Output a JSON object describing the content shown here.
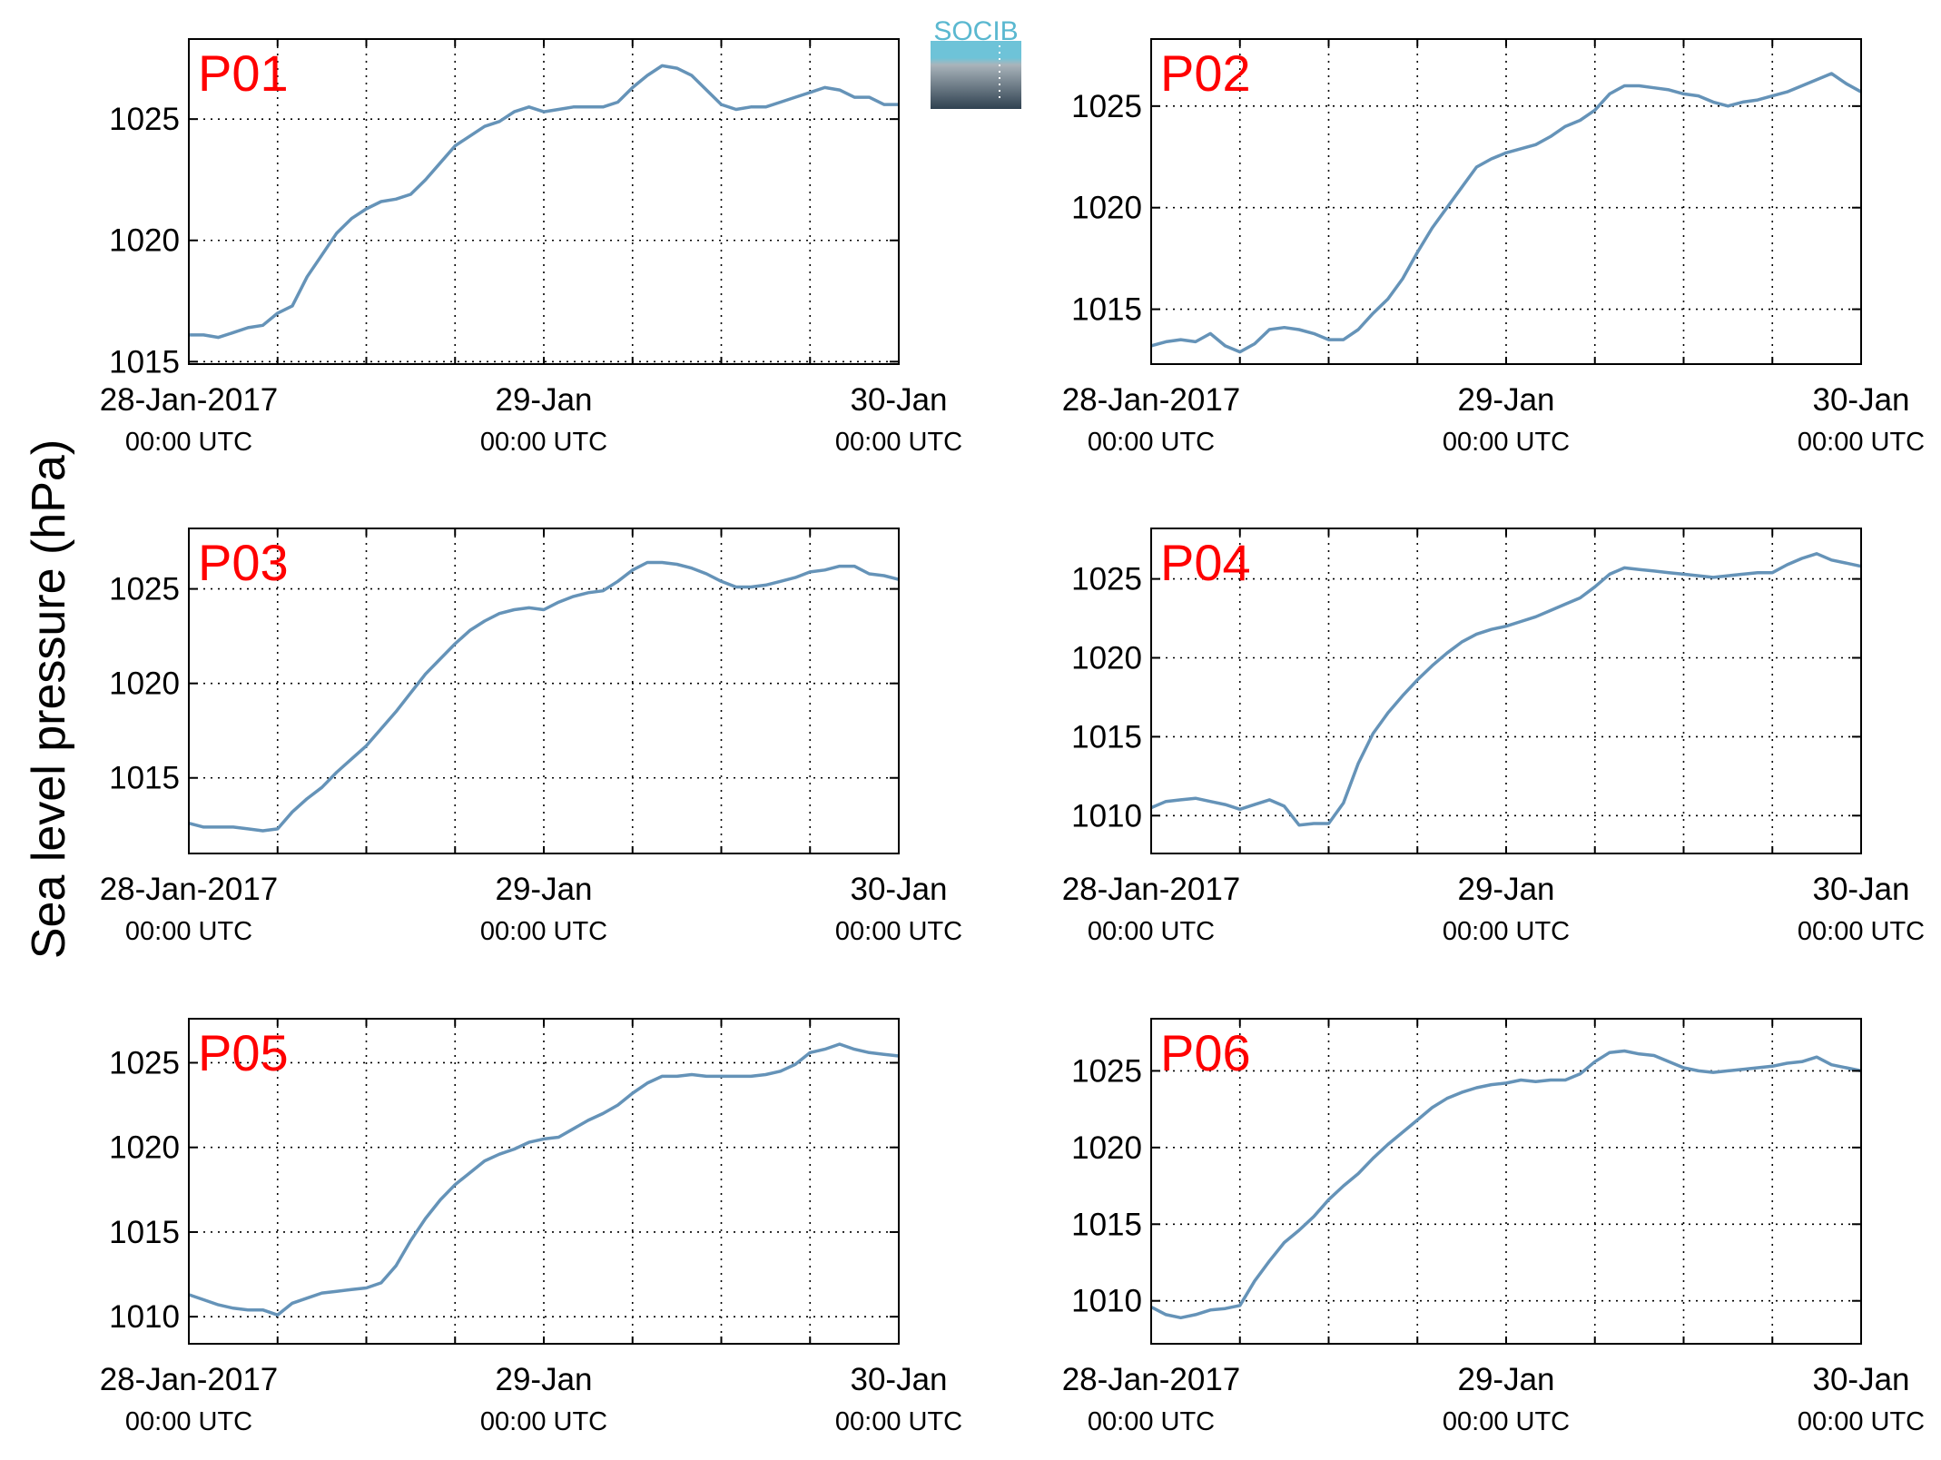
{
  "figure": {
    "ylabel": "Sea level pressure (hPa)",
    "logo_text": "SOCIB",
    "line_color": "#6593b8",
    "label_color": "#ff0000"
  },
  "chart_data": [
    {
      "type": "line",
      "name": "P01",
      "ylim": [
        1014.9,
        1028.3
      ],
      "yticks": [
        1015,
        1020,
        1025
      ],
      "xlim": [
        0,
        48
      ],
      "xticks": [
        0,
        24,
        48
      ],
      "xticklabels": [
        [
          "28-Jan-2017",
          "00:00 UTC"
        ],
        [
          "29-Jan",
          "00:00 UTC"
        ],
        [
          "30-Jan",
          "00:00 UTC"
        ]
      ],
      "grid": true,
      "x": [
        0,
        1,
        2,
        3,
        4,
        5,
        6,
        7,
        8,
        9,
        10,
        11,
        12,
        13,
        14,
        15,
        16,
        17,
        18,
        19,
        20,
        21,
        22,
        23,
        24,
        25,
        26,
        27,
        28,
        29,
        30,
        31,
        32,
        33,
        34,
        35,
        36,
        37,
        38,
        39,
        40,
        41,
        42,
        43,
        44,
        45,
        46,
        47,
        48
      ],
      "y": [
        1016.1,
        1016.1,
        1016.0,
        1016.2,
        1016.4,
        1016.5,
        1017.0,
        1017.3,
        1018.5,
        1019.4,
        1020.3,
        1020.9,
        1021.3,
        1021.6,
        1021.7,
        1021.9,
        1022.5,
        1023.2,
        1023.9,
        1024.3,
        1024.7,
        1024.9,
        1025.3,
        1025.5,
        1025.3,
        1025.4,
        1025.5,
        1025.5,
        1025.5,
        1025.7,
        1026.3,
        1026.8,
        1027.2,
        1027.1,
        1026.8,
        1026.2,
        1025.6,
        1025.4,
        1025.5,
        1025.5,
        1025.7,
        1025.9,
        1026.1,
        1026.3,
        1026.2,
        1025.9,
        1025.9,
        1025.6,
        1025.6
      ]
    },
    {
      "type": "line",
      "name": "P02",
      "ylim": [
        1012.3,
        1028.3
      ],
      "yticks": [
        1015,
        1020,
        1025
      ],
      "xlim": [
        0,
        48
      ],
      "xticks": [
        0,
        24,
        48
      ],
      "xticklabels": [
        [
          "28-Jan-2017",
          "00:00 UTC"
        ],
        [
          "29-Jan",
          "00:00 UTC"
        ],
        [
          "30-Jan",
          "00:00 UTC"
        ]
      ],
      "grid": true,
      "x": [
        0,
        1,
        2,
        3,
        4,
        5,
        6,
        7,
        8,
        9,
        10,
        11,
        12,
        13,
        14,
        15,
        16,
        17,
        18,
        19,
        20,
        21,
        22,
        23,
        24,
        25,
        26,
        27,
        28,
        29,
        30,
        31,
        32,
        33,
        34,
        35,
        36,
        37,
        38,
        39,
        40,
        41,
        42,
        43,
        44,
        45,
        46,
        47,
        48
      ],
      "y": [
        1013.2,
        1013.4,
        1013.5,
        1013.4,
        1013.8,
        1013.2,
        1012.9,
        1013.3,
        1014.0,
        1014.1,
        1014.0,
        1013.8,
        1013.5,
        1013.5,
        1014.0,
        1014.8,
        1015.5,
        1016.5,
        1017.8,
        1019.0,
        1020.0,
        1021.0,
        1022.0,
        1022.4,
        1022.7,
        1022.9,
        1023.1,
        1023.5,
        1024.0,
        1024.3,
        1024.8,
        1025.6,
        1026.0,
        1026.0,
        1025.9,
        1025.8,
        1025.6,
        1025.5,
        1025.2,
        1025.0,
        1025.2,
        1025.3,
        1025.5,
        1025.7,
        1026.0,
        1026.3,
        1026.6,
        1026.1,
        1025.7
      ]
    },
    {
      "type": "line",
      "name": "P03",
      "ylim": [
        1011.0,
        1028.2
      ],
      "yticks": [
        1015,
        1020,
        1025
      ],
      "xlim": [
        0,
        48
      ],
      "xticks": [
        0,
        24,
        48
      ],
      "xticklabels": [
        [
          "28-Jan-2017",
          "00:00 UTC"
        ],
        [
          "29-Jan",
          "00:00 UTC"
        ],
        [
          "30-Jan",
          "00:00 UTC"
        ]
      ],
      "grid": true,
      "x": [
        0,
        1,
        2,
        3,
        4,
        5,
        6,
        7,
        8,
        9,
        10,
        11,
        12,
        13,
        14,
        15,
        16,
        17,
        18,
        19,
        20,
        21,
        22,
        23,
        24,
        25,
        26,
        27,
        28,
        29,
        30,
        31,
        32,
        33,
        34,
        35,
        36,
        37,
        38,
        39,
        40,
        41,
        42,
        43,
        44,
        45,
        46,
        47,
        48
      ],
      "y": [
        1012.6,
        1012.4,
        1012.4,
        1012.4,
        1012.3,
        1012.2,
        1012.3,
        1013.2,
        1013.9,
        1014.5,
        1015.3,
        1016.0,
        1016.7,
        1017.6,
        1018.5,
        1019.5,
        1020.5,
        1021.3,
        1022.1,
        1022.8,
        1023.3,
        1023.7,
        1023.9,
        1024.0,
        1023.9,
        1024.3,
        1024.6,
        1024.8,
        1024.9,
        1025.4,
        1026.0,
        1026.4,
        1026.4,
        1026.3,
        1026.1,
        1025.8,
        1025.4,
        1025.1,
        1025.1,
        1025.2,
        1025.4,
        1025.6,
        1025.9,
        1026.0,
        1026.2,
        1026.2,
        1025.8,
        1025.7,
        1025.5
      ]
    },
    {
      "type": "line",
      "name": "P04",
      "ylim": [
        1007.6,
        1028.2
      ],
      "yticks": [
        1010,
        1015,
        1020,
        1025
      ],
      "xlim": [
        0,
        48
      ],
      "xticks": [
        0,
        24,
        48
      ],
      "xticklabels": [
        [
          "28-Jan-2017",
          "00:00 UTC"
        ],
        [
          "29-Jan",
          "00:00 UTC"
        ],
        [
          "30-Jan",
          "00:00 UTC"
        ]
      ],
      "grid": true,
      "x": [
        0,
        1,
        2,
        3,
        4,
        5,
        6,
        7,
        8,
        9,
        10,
        11,
        12,
        13,
        14,
        15,
        16,
        17,
        18,
        19,
        20,
        21,
        22,
        23,
        24,
        25,
        26,
        27,
        28,
        29,
        30,
        31,
        32,
        33,
        34,
        35,
        36,
        37,
        38,
        39,
        40,
        41,
        42,
        43,
        44,
        45,
        46,
        47,
        48
      ],
      "y": [
        1010.5,
        1010.9,
        1011.0,
        1011.1,
        1010.9,
        1010.7,
        1010.4,
        1010.7,
        1011.0,
        1010.6,
        1009.4,
        1009.5,
        1009.5,
        1010.8,
        1013.3,
        1015.2,
        1016.5,
        1017.6,
        1018.6,
        1019.5,
        1020.3,
        1021.0,
        1021.5,
        1021.8,
        1022.0,
        1022.3,
        1022.6,
        1023.0,
        1023.4,
        1023.8,
        1024.5,
        1025.3,
        1025.7,
        1025.6,
        1025.5,
        1025.4,
        1025.3,
        1025.2,
        1025.1,
        1025.2,
        1025.3,
        1025.4,
        1025.4,
        1025.9,
        1026.3,
        1026.6,
        1026.2,
        1026.0,
        1025.8
      ]
    },
    {
      "type": "line",
      "name": "P05",
      "ylim": [
        1008.4,
        1027.6
      ],
      "yticks": [
        1010,
        1015,
        1020,
        1025
      ],
      "xlim": [
        0,
        48
      ],
      "xticks": [
        0,
        24,
        48
      ],
      "xticklabels": [
        [
          "28-Jan-2017",
          "00:00 UTC"
        ],
        [
          "29-Jan",
          "00:00 UTC"
        ],
        [
          "30-Jan",
          "00:00 UTC"
        ]
      ],
      "grid": true,
      "x": [
        0,
        1,
        2,
        3,
        4,
        5,
        6,
        7,
        8,
        9,
        10,
        11,
        12,
        13,
        14,
        15,
        16,
        17,
        18,
        19,
        20,
        21,
        22,
        23,
        24,
        25,
        26,
        27,
        28,
        29,
        30,
        31,
        32,
        33,
        34,
        35,
        36,
        37,
        38,
        39,
        40,
        41,
        42,
        43,
        44,
        45,
        46,
        47,
        48
      ],
      "y": [
        1011.3,
        1011.0,
        1010.7,
        1010.5,
        1010.4,
        1010.4,
        1010.1,
        1010.8,
        1011.1,
        1011.4,
        1011.5,
        1011.6,
        1011.7,
        1012.0,
        1013.0,
        1014.5,
        1015.8,
        1016.9,
        1017.8,
        1018.5,
        1019.2,
        1019.6,
        1019.9,
        1020.3,
        1020.5,
        1020.6,
        1021.1,
        1021.6,
        1022.0,
        1022.5,
        1023.2,
        1023.8,
        1024.2,
        1024.2,
        1024.3,
        1024.2,
        1024.2,
        1024.2,
        1024.2,
        1024.3,
        1024.5,
        1024.9,
        1025.6,
        1025.8,
        1026.1,
        1025.8,
        1025.6,
        1025.5,
        1025.4
      ]
    },
    {
      "type": "line",
      "name": "P06",
      "ylim": [
        1007.2,
        1028.4
      ],
      "yticks": [
        1010,
        1015,
        1020,
        1025
      ],
      "xlim": [
        0,
        48
      ],
      "xticks": [
        0,
        24,
        48
      ],
      "xticklabels": [
        [
          "28-Jan-2017",
          "00:00 UTC"
        ],
        [
          "29-Jan",
          "00:00 UTC"
        ],
        [
          "30-Jan",
          "00:00 UTC"
        ]
      ],
      "grid": true,
      "x": [
        0,
        1,
        2,
        3,
        4,
        5,
        6,
        7,
        8,
        9,
        10,
        11,
        12,
        13,
        14,
        15,
        16,
        17,
        18,
        19,
        20,
        21,
        22,
        23,
        24,
        25,
        26,
        27,
        28,
        29,
        30,
        31,
        32,
        33,
        34,
        35,
        36,
        37,
        38,
        39,
        40,
        41,
        42,
        43,
        44,
        45,
        46,
        47,
        48
      ],
      "y": [
        1009.6,
        1009.1,
        1008.9,
        1009.1,
        1009.4,
        1009.5,
        1009.7,
        1011.3,
        1012.6,
        1013.8,
        1014.6,
        1015.5,
        1016.6,
        1017.5,
        1018.3,
        1019.3,
        1020.2,
        1021.0,
        1021.8,
        1022.6,
        1023.2,
        1023.6,
        1023.9,
        1024.1,
        1024.2,
        1024.4,
        1024.3,
        1024.4,
        1024.4,
        1024.8,
        1025.6,
        1026.2,
        1026.3,
        1026.1,
        1026.0,
        1025.6,
        1025.2,
        1025.0,
        1024.9,
        1025.0,
        1025.1,
        1025.2,
        1025.3,
        1025.5,
        1025.6,
        1025.9,
        1025.4,
        1025.2,
        1025.0
      ]
    }
  ]
}
